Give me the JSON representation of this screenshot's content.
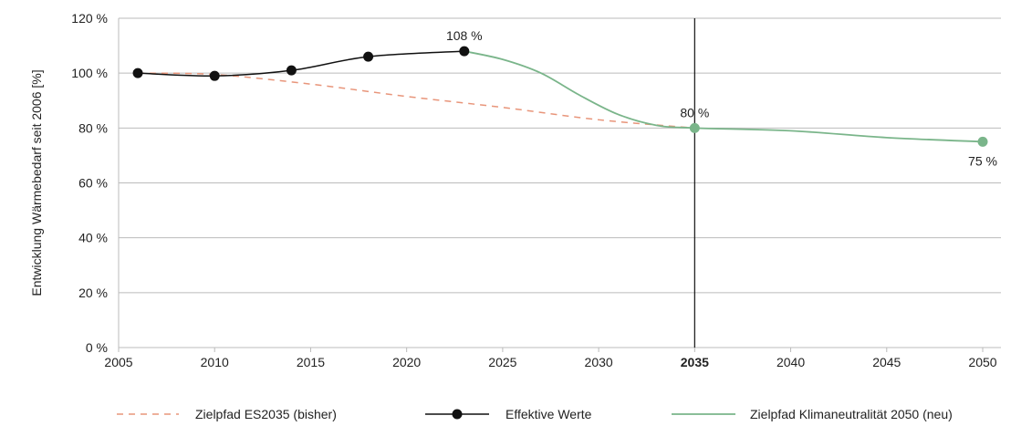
{
  "chart_data": {
    "type": "line",
    "title": "",
    "xlabel": "",
    "ylabel": "Entwicklung Wärmebedarf seit 2006 [%]",
    "xlim": [
      2005,
      2050
    ],
    "ylim": [
      0,
      120
    ],
    "x_ticks": [
      "2005",
      "2010",
      "2015",
      "2020",
      "2025",
      "2030",
      "2035",
      "2040",
      "2045",
      "2050"
    ],
    "x_tick_values": [
      2005,
      2010,
      2015,
      2020,
      2025,
      2030,
      2035,
      2040,
      2045,
      2050
    ],
    "highlight_x": 2035,
    "y_ticks": [
      "0 %",
      "20 %",
      "40 %",
      "60 %",
      "80 %",
      "100 %",
      "120 %"
    ],
    "y_tick_values": [
      0,
      20,
      40,
      60,
      80,
      100,
      120
    ],
    "grid": "horizontal",
    "legend_position": "bottom",
    "colors": {
      "es2035": "#e8957a",
      "effektiv": "#111111",
      "klima": "#7ab58a",
      "grid": "#bbbbbb"
    },
    "series": [
      {
        "name": "Zielpfad ES2035 (bisher)",
        "style": "dashed",
        "x": [
          2006,
          2010,
          2015,
          2020,
          2025,
          2030,
          2035
        ],
        "y": [
          100,
          99.5,
          96,
          91.5,
          87.5,
          83,
          80
        ]
      },
      {
        "name": "Effektive Werte",
        "style": "line-markers",
        "x": [
          2006,
          2010,
          2014,
          2018,
          2023
        ],
        "y": [
          100,
          99,
          101,
          106,
          108
        ]
      },
      {
        "name": "Zielpfad Klimaneutralität 2050 (neu)",
        "style": "solid",
        "x": [
          2023,
          2025,
          2027,
          2029,
          2031,
          2033,
          2035,
          2040,
          2045,
          2050
        ],
        "y": [
          108,
          105,
          100,
          92,
          85,
          81,
          80,
          79,
          76.5,
          75
        ],
        "markers_at": [
          2035,
          2050
        ]
      }
    ],
    "annotations": [
      {
        "x": 2023,
        "y": 108,
        "text": "108 %",
        "position": "above"
      },
      {
        "x": 2035,
        "y": 80,
        "text": "80 %",
        "position": "above"
      },
      {
        "x": 2050,
        "y": 75,
        "text": "75 %",
        "position": "below"
      }
    ]
  }
}
